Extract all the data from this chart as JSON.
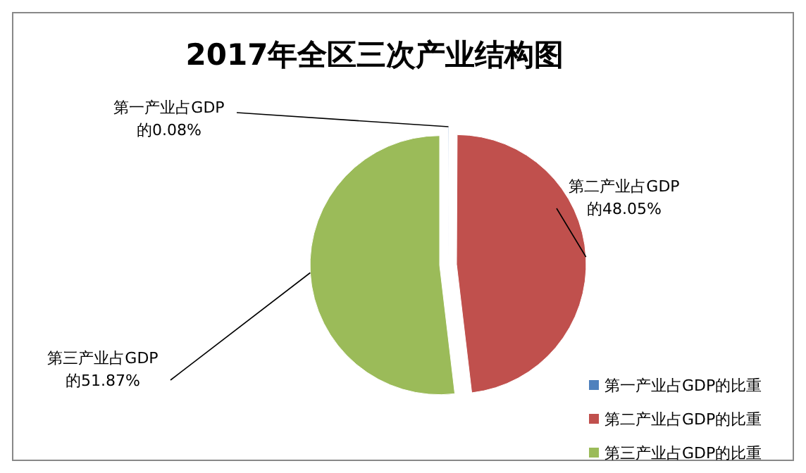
{
  "chart_data": {
    "type": "pie",
    "title": "2017年全区三次产业结构图",
    "categories": [
      "第一产业占GDP的比重",
      "第二产业占GDP的比重",
      "第三产业占GDP的比重"
    ],
    "values": [
      0.08,
      48.05,
      51.87
    ],
    "colors": [
      "#4f81bd",
      "#c0504d",
      "#9bbb59"
    ],
    "value_labels": [
      "第一产业占GDP的0.08%",
      "第二产业占GDP的48.05%",
      "第三产业占GDP的51.87%"
    ],
    "legend": "bottom right"
  }
}
